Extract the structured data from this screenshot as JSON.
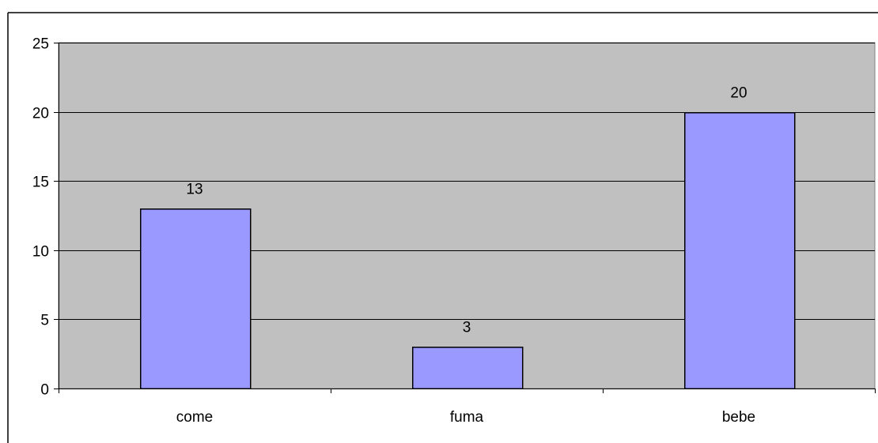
{
  "chart_data": {
    "type": "bar",
    "title": "",
    "xlabel": "",
    "ylabel": "",
    "categories": [
      "come",
      "fuma",
      "bebe"
    ],
    "values": [
      13,
      3,
      20
    ],
    "data_labels": [
      "13",
      "3",
      "20"
    ],
    "ylim": [
      0,
      25
    ],
    "yticks": [
      0,
      5,
      10,
      15,
      20,
      25
    ],
    "ytick_labels": [
      "0",
      "5",
      "10",
      "15",
      "20",
      "25"
    ],
    "grid": true,
    "legend": "none",
    "colors": {
      "bar_fill": "#9999ff",
      "plot_background": "#c0c0c0",
      "gridline": "#000000"
    }
  }
}
